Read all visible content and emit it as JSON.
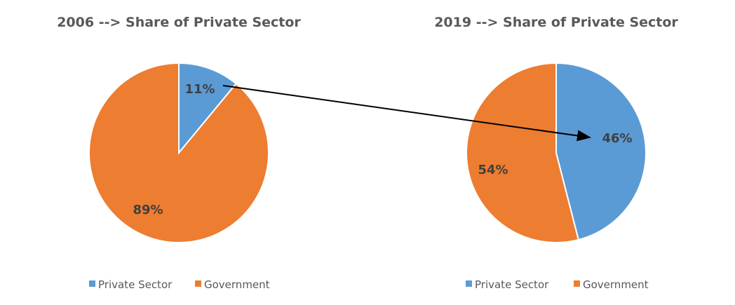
{
  "chart_data": [
    {
      "type": "pie",
      "title": "2006 --> Share of Private Sector",
      "categories": [
        "Private Sector",
        "Government"
      ],
      "values": [
        11,
        89
      ],
      "labels": [
        "11%",
        "89%"
      ],
      "colors": [
        "#5B9BD5",
        "#ED7D31"
      ],
      "legend": "bottom"
    },
    {
      "type": "pie",
      "title": "2019 --> Share of Private Sector",
      "categories": [
        "Private Sector",
        "Government"
      ],
      "values": [
        46,
        54
      ],
      "labels": [
        "46%",
        "54%"
      ],
      "colors": [
        "#5B9BD5",
        "#ED7D31"
      ],
      "legend": "bottom"
    }
  ],
  "annotation": {
    "type": "arrow",
    "from": "2006 Private Sector 11%",
    "to": "2019 Private Sector 46%"
  }
}
